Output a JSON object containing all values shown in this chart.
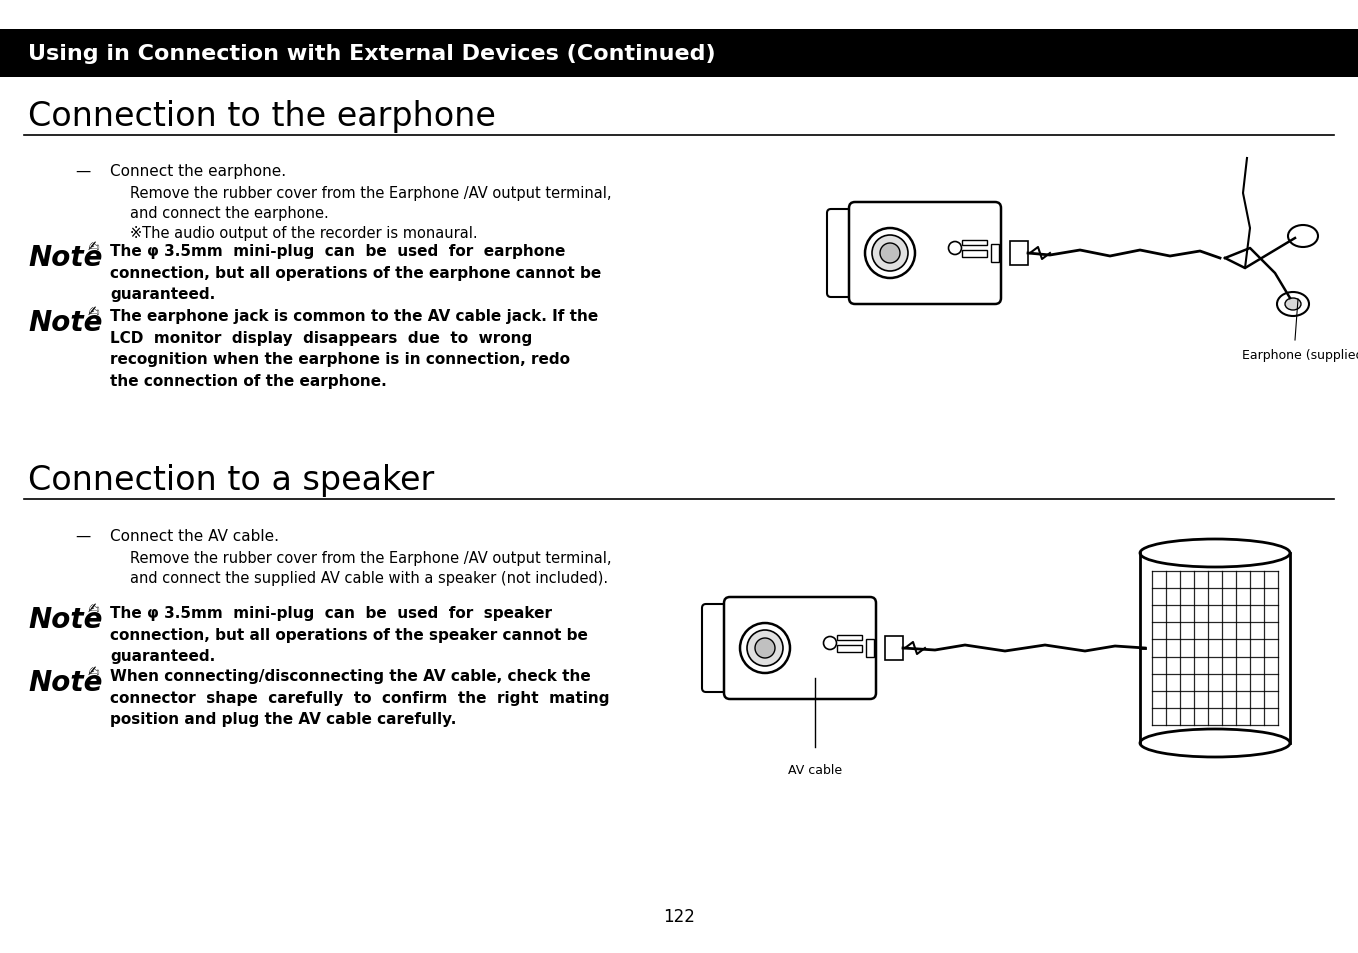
{
  "header_bg": "#000000",
  "header_text_color": "#ffffff",
  "header_text": "Using in Connection with External Devices (Continued)",
  "header_fontsize": 16,
  "body_bg": "#ffffff",
  "body_text_color": "#000000",
  "section1_title": "Connection to the earphone",
  "section1_title_fontsize": 24,
  "section2_title": "Connection to a speaker",
  "section2_title_fontsize": 24,
  "step1_bullet": "—",
  "step1_main": "Connect the earphone.",
  "step1_sub1": "Remove the rubber cover from the Earphone /AV output terminal,",
  "step1_sub2": "and connect the earphone.",
  "step1_sub3": "※The audio output of the recorder is monaural.",
  "note1_bold": "The φ 3.5mm  mini-plug  can  be  used  for  earphone\nconnection, but all operations of the earphone cannot be\nguaranteed.",
  "note2_bold": "The earphone jack is common to the AV cable jack. If the\nLCD  monitor  display  disappears  due  to  wrong\nrecognition when the earphone is in connection, redo\nthe connection of the earphone.",
  "step2_bullet": "—",
  "step2_main": "Connect the AV cable.",
  "step2_sub1": "Remove the rubber cover from the Earphone /AV output terminal,",
  "step2_sub2": "and connect the supplied AV cable with a speaker (not included).",
  "note3_bold": "The φ 3.5mm  mini-plug  can  be  used  for  speaker\nconnection, but all operations of the speaker cannot be\nguaranteed.",
  "note4_bold": "When connecting/disconnecting the AV cable, check the\nconnector  shape  carefully  to  confirm  the  right  mating\nposition and plug the AV cable carefully.",
  "earphone_label": "Earphone (supplied)",
  "avcable_label": "AV cable",
  "page_number": "122",
  "note_fontsize": 20,
  "body_fontsize": 11,
  "sub_fontsize": 10.5
}
